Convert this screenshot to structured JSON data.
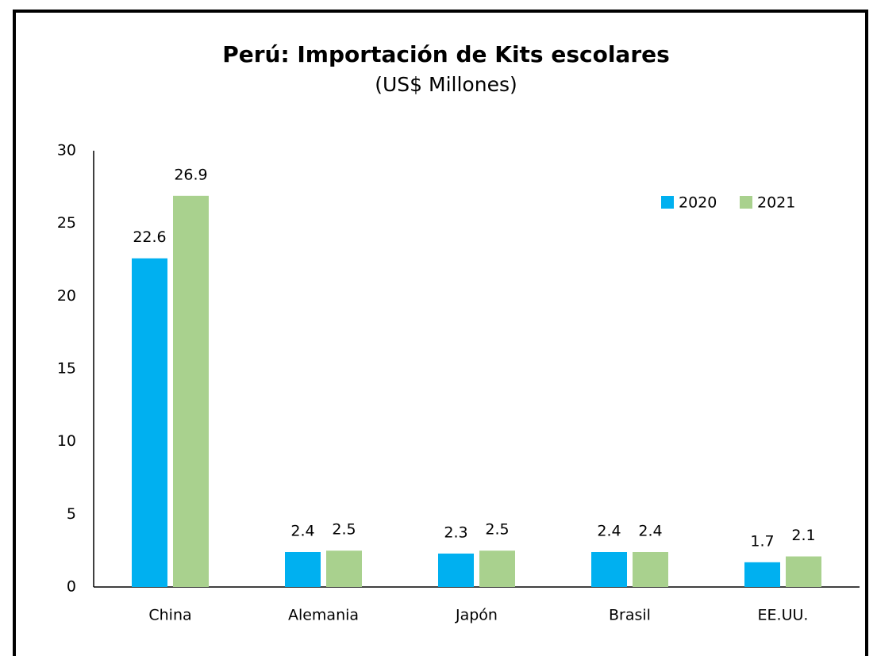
{
  "chart_data": {
    "type": "bar",
    "title": "Perú: Importación de Kits escolares",
    "subtitle": "(US$ Millones)",
    "categories": [
      "China",
      "Alemania",
      "Japón",
      "Brasil",
      "EE.UU."
    ],
    "series": [
      {
        "name": "2020",
        "color": "#00b0f0",
        "values": [
          22.6,
          2.4,
          2.3,
          2.4,
          1.7
        ]
      },
      {
        "name": "2021",
        "color": "#a9d18e",
        "values": [
          26.9,
          2.5,
          2.5,
          2.4,
          2.1
        ]
      }
    ],
    "ylim": [
      0,
      30
    ],
    "yticks": [
      0,
      5,
      10,
      15,
      20,
      25,
      30
    ],
    "grid": false,
    "legend": "top-right"
  }
}
